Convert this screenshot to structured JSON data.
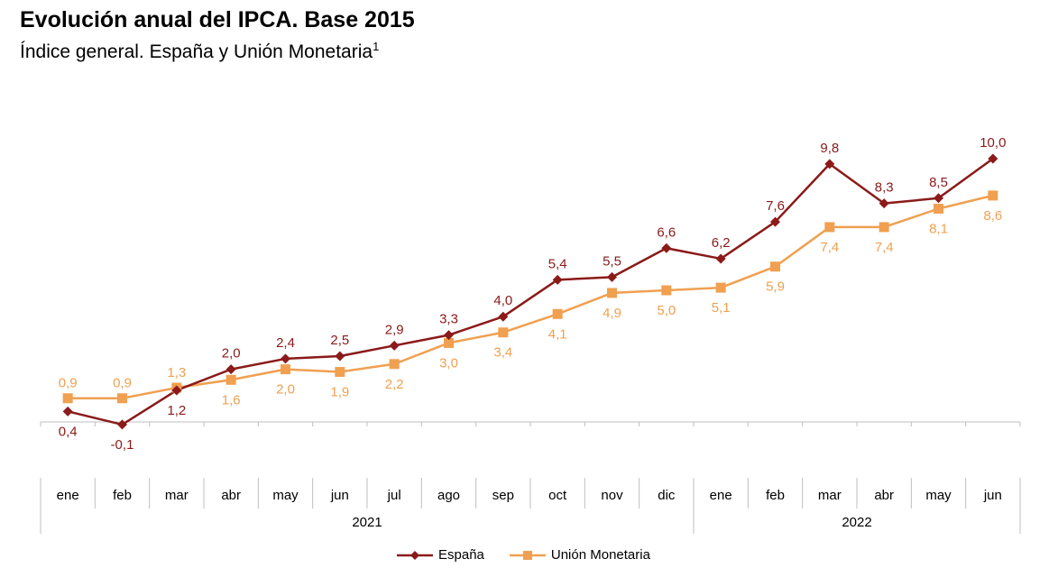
{
  "title": "Evolución anual del IPCA. Base 2015",
  "subtitle": "Índice general. España y Unión Monetaria",
  "subtitle_note": "1",
  "colors": {
    "espana": "#8B1A1A",
    "um": "#F0A050",
    "axis": "#BFBFBF"
  },
  "legend": [
    {
      "name": "España",
      "color": "#8B1A1A",
      "marker": "diamond"
    },
    {
      "name": "Unión Monetaria",
      "color": "#F0A050",
      "marker": "square"
    }
  ],
  "chart_data": {
    "type": "line",
    "categories": [
      "ene",
      "feb",
      "mar",
      "abr",
      "may",
      "jun",
      "jul",
      "ago",
      "sep",
      "oct",
      "nov",
      "dic",
      "ene",
      "feb",
      "mar",
      "abr",
      "may",
      "jun"
    ],
    "groups": [
      {
        "label": "2021",
        "count": 12
      },
      {
        "label": "2022",
        "count": 6
      }
    ],
    "series": [
      {
        "name": "España",
        "values": [
          0.4,
          -0.1,
          1.2,
          2.0,
          2.4,
          2.5,
          2.9,
          3.3,
          4.0,
          5.4,
          5.5,
          6.6,
          6.2,
          7.6,
          9.8,
          8.3,
          8.5,
          10.0
        ],
        "labels": [
          "0,4",
          "-0,1",
          "1,2",
          "2,0",
          "2,4",
          "2,5",
          "2,9",
          "3,3",
          "4,0",
          "5,4",
          "5,5",
          "6,6",
          "6,2",
          "7,6",
          "9,8",
          "8,3",
          "8,5",
          "10,0"
        ]
      },
      {
        "name": "Unión Monetaria",
        "values": [
          0.9,
          0.9,
          1.3,
          1.6,
          2.0,
          1.9,
          2.2,
          3.0,
          3.4,
          4.1,
          4.9,
          5.0,
          5.1,
          5.9,
          7.4,
          7.4,
          8.1,
          8.6
        ],
        "labels": [
          "0,9",
          "0,9",
          "1,3",
          "1,6",
          "2,0",
          "1,9",
          "2,2",
          "3,0",
          "3,4",
          "4,1",
          "4,9",
          "5,0",
          "5,1",
          "5,9",
          "7,4",
          "7,4",
          "8,1",
          "8,6"
        ]
      }
    ],
    "legend_position": "bottom",
    "grid": false
  }
}
